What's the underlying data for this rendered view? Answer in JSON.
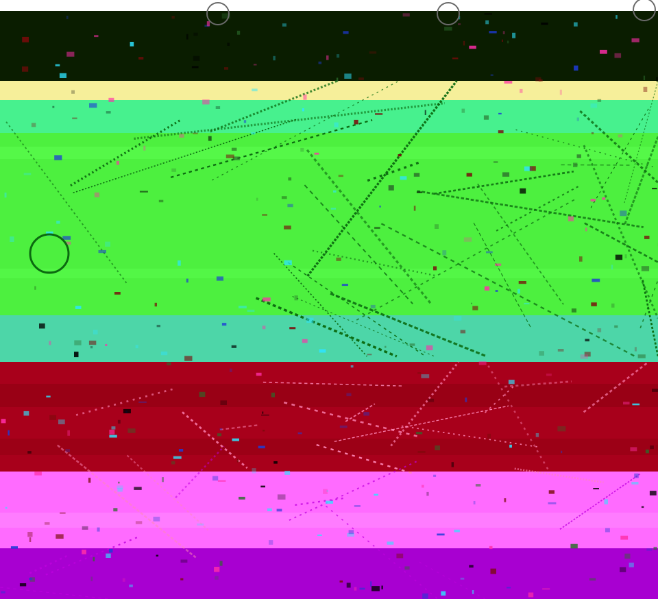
{
  "image": {
    "subject": "glitched-color-banded-photo",
    "colors": {
      "top_bar": "#0a1d00",
      "band_yellow": "#f6ef9a",
      "band_mint": "#47f18e",
      "band_green": "#4df03f",
      "band_teal": "#4dd6a8",
      "band_red": "#a8001b",
      "band_pink": "#ff6bff",
      "band_purple": "#a800d1",
      "line_dark": "#0b6a10",
      "speck_blue": "#1e3bd6",
      "speck_cyan": "#2ee4ff"
    }
  }
}
